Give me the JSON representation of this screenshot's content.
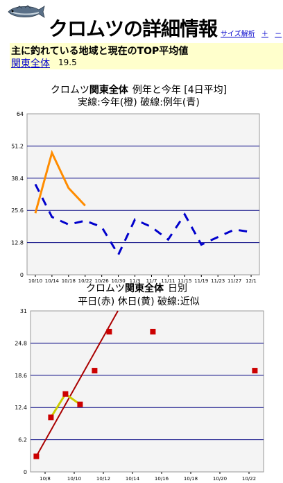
{
  "header": {
    "fish_icon": "fish-icon",
    "title": "クロムツの詳細情報",
    "links": [
      "サイズ解析",
      "＋",
      "－"
    ]
  },
  "summary": {
    "heading": "主に釣れている地域と現在のTOP平均値",
    "region": "関東全体",
    "value": "19.5"
  },
  "colors": {
    "this_year": "#ff8c00",
    "last_year": "#0000cc",
    "weekday": "#cc0000",
    "holiday": "#cccc00",
    "trend": "#aa0000"
  },
  "chart_data": [
    {
      "type": "line",
      "title_parts": [
        "クロムツ",
        "関東全体",
        "例年と今年 [4日平均]"
      ],
      "subtitle": "実線:今年(橙)  破線:例年(青)",
      "categories": [
        "10/10",
        "10/14",
        "10/18",
        "10/22",
        "10/26",
        "10/30",
        "11/3",
        "11/7",
        "11/11",
        "11/15",
        "11/19",
        "11/23",
        "11/27",
        "12/1"
      ],
      "yticks": [
        "0",
        "12.8",
        "25.6",
        "38.4",
        "51.2",
        "64"
      ],
      "ylim": [
        0,
        64
      ],
      "series": [
        {
          "name": "今年",
          "style": "solid",
          "color": "#ff8c00",
          "x": [
            0,
            1,
            2,
            3
          ],
          "y": [
            24.5,
            48.5,
            34.5,
            27.5
          ]
        },
        {
          "name": "例年",
          "style": "dashed",
          "color": "#0000cc",
          "x": [
            0,
            1,
            2,
            3,
            4,
            5,
            6,
            7,
            8,
            9,
            10,
            11,
            12,
            13
          ],
          "y": [
            36,
            23,
            20,
            21.5,
            19,
            8,
            22,
            19,
            14,
            24,
            12,
            15,
            18,
            17
          ]
        }
      ]
    },
    {
      "type": "scatter",
      "title_parts": [
        "クロムツ",
        "関東全体",
        "日別"
      ],
      "subtitle": "平日(赤) 休日(黄) 破線:近似",
      "categories": [
        "10/8",
        "10/10",
        "10/12",
        "10/14",
        "10/16",
        "10/18",
        "10/20",
        "10/22"
      ],
      "xrange": [
        7,
        23
      ],
      "yticks": [
        "0",
        "6.2",
        "12.4",
        "18.6",
        "24.8",
        "31"
      ],
      "ylim": [
        0,
        31
      ],
      "points": [
        {
          "x": 7.4,
          "y": 3
        },
        {
          "x": 8.4,
          "y": 10.5
        },
        {
          "x": 9.4,
          "y": 15
        },
        {
          "x": 10.4,
          "y": 13
        },
        {
          "x": 11.4,
          "y": 19.5
        },
        {
          "x": 12.4,
          "y": 27
        },
        {
          "x": 15.4,
          "y": 27
        },
        {
          "x": 22.4,
          "y": 19.5
        }
      ],
      "holiday_line": {
        "x": [
          8.4,
          9.4,
          10.4
        ],
        "y": [
          10.5,
          15,
          13
        ]
      },
      "trend_line": {
        "x": [
          7.4,
          13.0
        ],
        "y": [
          3,
          31
        ]
      }
    }
  ]
}
